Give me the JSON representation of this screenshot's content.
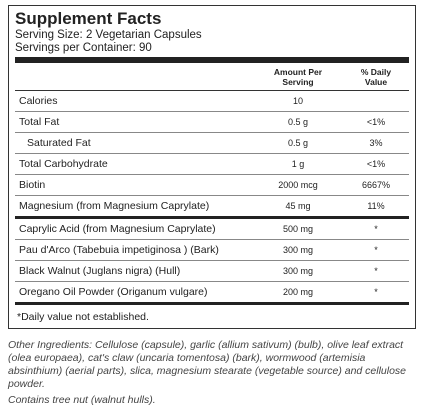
{
  "label": {
    "title": "Supplement Facts",
    "serving_size": "Serving Size: 2 Vegetarian Capsules",
    "servings_per_container": "Servings per Container: 90",
    "header": {
      "amount": "Amount Per Serving",
      "daily_value": "% Daily Value"
    },
    "rows": [
      {
        "name": "Calories",
        "amount": "10"
      },
      {
        "name": "Total Fat",
        "amount": "0.5 g",
        "daily_value": "<1%"
      },
      {
        "name": "Saturated Fat",
        "amount": "0.5 g",
        "daily_value": "3%"
      },
      {
        "name": "Total Carbohydrate",
        "amount": "1 g",
        "daily_value": "<1%"
      },
      {
        "name": "Biotin",
        "amount": "2000 mcg",
        "daily_value": "6667%"
      },
      {
        "name": "Magnesium (from Magnesium Caprylate)",
        "amount": "45 mg",
        "daily_value": "11%"
      },
      {
        "name": "Caprylic Acid (from Magnesium Caprylate)",
        "amount": "500 mg",
        "daily_value": "*"
      },
      {
        "name": "Pau d'Arco (Tabebuia impetiginosa ) (Bark)",
        "amount": "300 mg",
        "daily_value": "*"
      },
      {
        "name": "Black Walnut (Juglans nigra) (Hull)",
        "amount": "300 mg",
        "daily_value": "*"
      },
      {
        "name": "Oregano Oil Powder (Origanum vulgare)",
        "amount": "200 mg",
        "daily_value": "*"
      }
    ],
    "footnote": "*Daily value not established."
  },
  "other_ingredients": "Other Ingredients: Cellulose (capsule), garlic (allium sativum) (bulb), olive leaf extract (olea europaea), cat's claw (uncaria tomentosa) (bark), wormwood (artemisia absinthium) (aerial parts), slica, magnesium stearate (vegetable source) and cellulose powder.",
  "allergen": "Contains tree nut (walnut hulls)."
}
